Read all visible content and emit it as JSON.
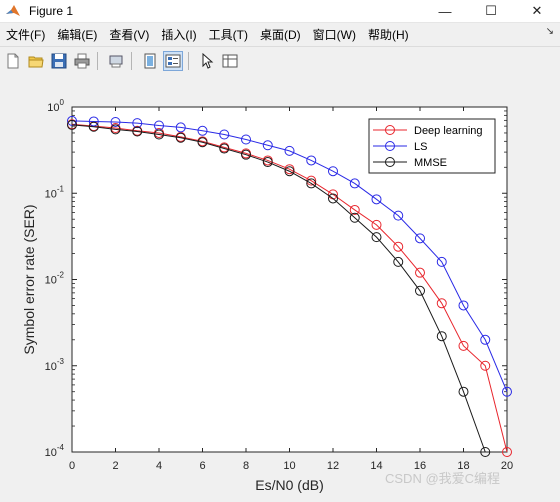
{
  "window": {
    "title": "Figure 1"
  },
  "window_controls": {
    "minimize": "—",
    "maximize": "☐",
    "close": "✕"
  },
  "menu": {
    "items": [
      "文件(F)",
      "编辑(E)",
      "查看(V)",
      "插入(I)",
      "工具(T)",
      "桌面(D)",
      "窗口(W)",
      "帮助(H)"
    ],
    "overflow_arrow": "↘"
  },
  "toolbar": {
    "icons": [
      "new-file-icon",
      "open-folder-icon",
      "save-icon",
      "print-icon",
      "print-preview-icon",
      "toggle-layout-icon",
      "property-editor-icon",
      "pointer-arrow-icon",
      "data-cursor-icon"
    ]
  },
  "watermark": "CSDN @我爱C编程",
  "colors": {
    "deep_learning": "#e8262d",
    "ls": "#2a2ae6",
    "mmse": "#1a1a1a"
  },
  "chart_data": {
    "type": "line",
    "title": "",
    "xlabel": "Es/N0 (dB)",
    "ylabel": "Symbol error rate (SER)",
    "x": [
      0,
      1,
      2,
      3,
      4,
      5,
      6,
      7,
      8,
      9,
      10,
      11,
      12,
      13,
      14,
      15,
      16,
      17,
      18,
      19,
      20
    ],
    "xlim": [
      0,
      20
    ],
    "xticks": [
      "0",
      "2",
      "4",
      "6",
      "8",
      "10",
      "12",
      "14",
      "16",
      "18",
      "20"
    ],
    "ylim": [
      0.0001,
      1
    ],
    "yscale": "log",
    "yticks": [
      {
        "value": 1,
        "mantissa": "10",
        "exp": "0"
      },
      {
        "value": 0.1,
        "mantissa": "10",
        "exp": "-1"
      },
      {
        "value": 0.01,
        "mantissa": "10",
        "exp": "-2"
      },
      {
        "value": 0.001,
        "mantissa": "10",
        "exp": "-3"
      },
      {
        "value": 0.0001,
        "mantissa": "10",
        "exp": "-4"
      }
    ],
    "grid": false,
    "legend_position": "top-right",
    "marker": "circle",
    "series": [
      {
        "name": "Deep learning",
        "color": "#e8262d",
        "y": [
          0.63,
          0.6,
          0.57,
          0.53,
          0.5,
          0.45,
          0.4,
          0.34,
          0.29,
          0.24,
          0.19,
          0.14,
          0.097,
          0.064,
          0.043,
          0.024,
          0.012,
          0.0053,
          0.0017,
          0.001,
          0.0001
        ]
      },
      {
        "name": "LS",
        "color": "#2a2ae6",
        "y": [
          0.69,
          0.68,
          0.67,
          0.65,
          0.61,
          0.58,
          0.53,
          0.48,
          0.42,
          0.36,
          0.31,
          0.24,
          0.18,
          0.13,
          0.085,
          0.055,
          0.03,
          0.016,
          0.005,
          0.002,
          0.0005
        ]
      },
      {
        "name": "MMSE",
        "color": "#1a1a1a",
        "y": [
          0.62,
          0.59,
          0.55,
          0.52,
          0.48,
          0.44,
          0.39,
          0.33,
          0.28,
          0.23,
          0.18,
          0.13,
          0.087,
          0.052,
          0.031,
          0.016,
          0.0074,
          0.0022,
          0.0005,
          0.0001,
          null
        ]
      }
    ]
  }
}
